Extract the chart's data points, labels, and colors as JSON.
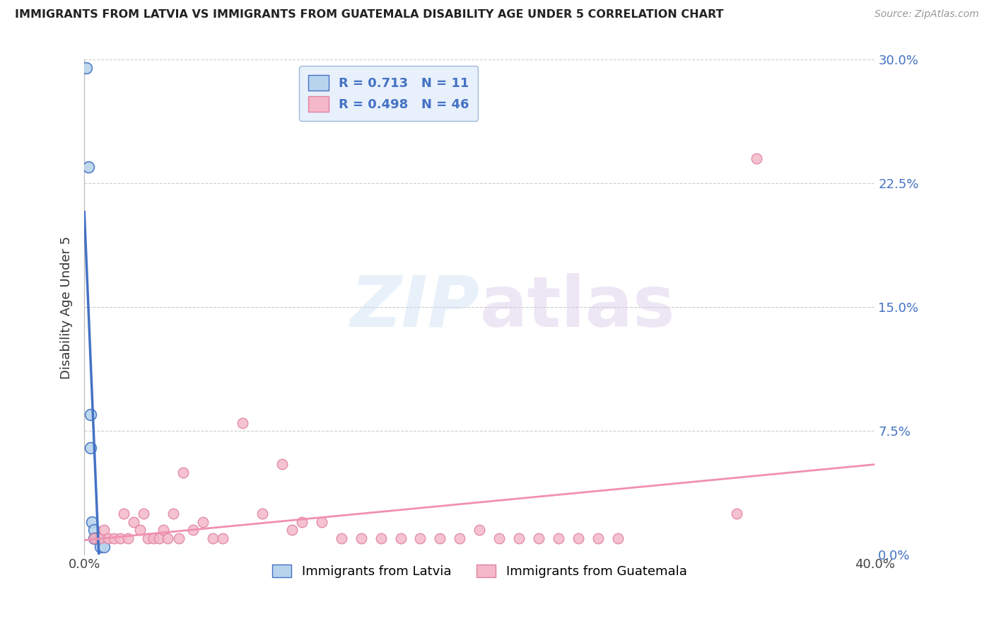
{
  "title": "IMMIGRANTS FROM LATVIA VS IMMIGRANTS FROM GUATEMALA DISABILITY AGE UNDER 5 CORRELATION CHART",
  "source": "Source: ZipAtlas.com",
  "xlabel_bottom": "Immigrants from Latvia",
  "xlabel_bottom2": "Immigrants from Guatemala",
  "ylabel": "Disability Age Under 5",
  "xlim": [
    0.0,
    0.4
  ],
  "ylim": [
    0.0,
    0.3
  ],
  "xticks": [
    0.0,
    0.4
  ],
  "xtick_labels": [
    "0.0%",
    "40.0%"
  ],
  "yticks": [
    0.0,
    0.075,
    0.15,
    0.225,
    0.3
  ],
  "ytick_labels": [
    "0.0%",
    "7.5%",
    "15.0%",
    "22.5%",
    "30.0%"
  ],
  "latvia_R": 0.713,
  "latvia_N": 11,
  "guatemala_R": 0.498,
  "guatemala_N": 46,
  "latvia_color": "#b8d4ed",
  "latvia_line_color": "#4472c4",
  "guatemala_color": "#f4b8c8",
  "guatemala_line_color": "#f090b0",
  "latvia_x": [
    0.001,
    0.002,
    0.003,
    0.003,
    0.004,
    0.005,
    0.005,
    0.006,
    0.007,
    0.008,
    0.01
  ],
  "latvia_y": [
    0.295,
    0.235,
    0.085,
    0.065,
    0.02,
    0.015,
    0.01,
    0.01,
    0.01,
    0.005,
    0.005
  ],
  "guatemala_x": [
    0.005,
    0.008,
    0.01,
    0.012,
    0.015,
    0.018,
    0.02,
    0.022,
    0.025,
    0.028,
    0.03,
    0.032,
    0.035,
    0.038,
    0.04,
    0.042,
    0.045,
    0.048,
    0.05,
    0.055,
    0.06,
    0.065,
    0.07,
    0.08,
    0.09,
    0.1,
    0.105,
    0.11,
    0.12,
    0.13,
    0.14,
    0.15,
    0.16,
    0.17,
    0.18,
    0.19,
    0.2,
    0.21,
    0.22,
    0.23,
    0.24,
    0.25,
    0.26,
    0.27,
    0.33,
    0.34
  ],
  "guatemala_y": [
    0.01,
    0.01,
    0.015,
    0.01,
    0.01,
    0.01,
    0.025,
    0.01,
    0.02,
    0.015,
    0.025,
    0.01,
    0.01,
    0.01,
    0.015,
    0.01,
    0.025,
    0.01,
    0.05,
    0.015,
    0.02,
    0.01,
    0.01,
    0.08,
    0.025,
    0.055,
    0.015,
    0.02,
    0.02,
    0.01,
    0.01,
    0.01,
    0.01,
    0.01,
    0.01,
    0.01,
    0.015,
    0.01,
    0.01,
    0.01,
    0.01,
    0.01,
    0.01,
    0.01,
    0.025,
    0.24
  ],
  "watermark_zip": "ZIP",
  "watermark_atlas": "atlas",
  "legend_box_color": "#e8f0fb",
  "legend_border_color": "#a0b8d8"
}
